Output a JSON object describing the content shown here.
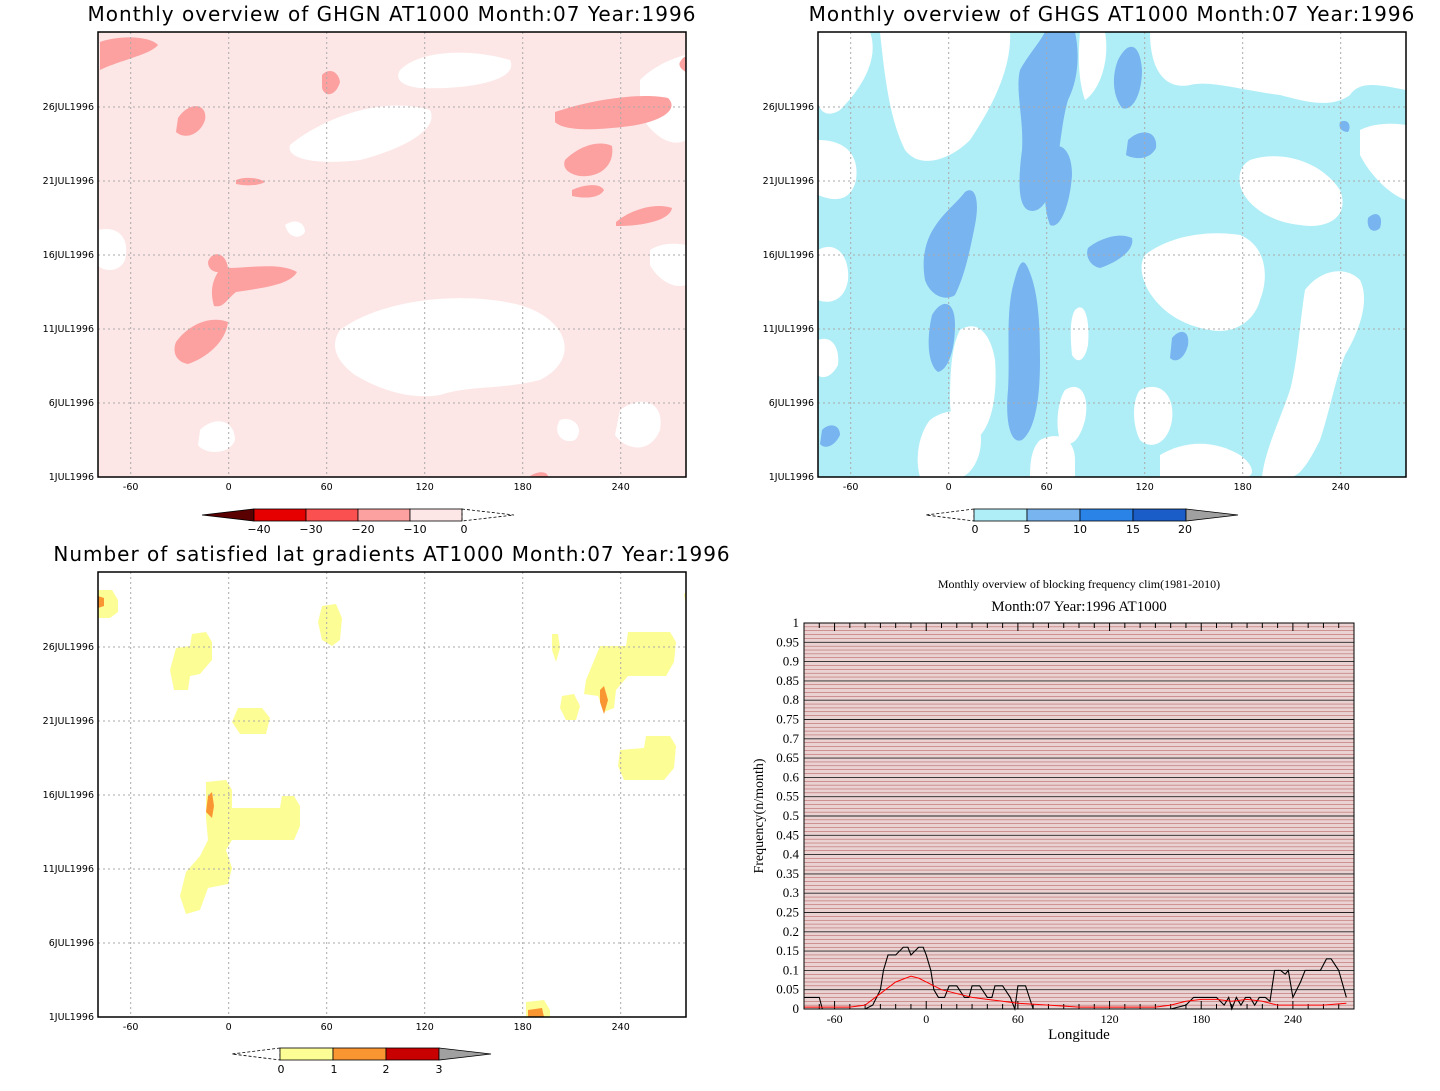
{
  "panels": {
    "ghgn": {
      "title": "Monthly overview of GHGN AT1000 Month:07 Year:1996",
      "x_ticks": [
        "-60",
        "0",
        "60",
        "120",
        "180",
        "240"
      ],
      "y_ticks": [
        "1JUL1996",
        "6JUL1996",
        "11JUL1996",
        "16JUL1996",
        "21JUL1996",
        "26JUL1996"
      ],
      "colorbar": {
        "labels": [
          "−40",
          "−30",
          "−20",
          "−10",
          "0"
        ],
        "colors": [
          "#5a0000",
          "#e60000",
          "#fa5050",
          "#fca0a0",
          "#fde6e6"
        ]
      }
    },
    "ghgs": {
      "title": "Monthly overview of GHGS AT1000 Month:07 Year:1996",
      "x_ticks": [
        "-60",
        "0",
        "60",
        "120",
        "180",
        "240"
      ],
      "y_ticks": [
        "1JUL1996",
        "6JUL1996",
        "11JUL1996",
        "16JUL1996",
        "21JUL1996",
        "26JUL1996"
      ],
      "colorbar": {
        "labels": [
          "0",
          "5",
          "10",
          "15",
          "20"
        ],
        "colors": [
          "#b0eef7",
          "#78b4f0",
          "#2a84e8",
          "#1a5cc8",
          "#a0a0a0"
        ]
      }
    },
    "gradients": {
      "title": "Number of satisfied lat gradients AT1000 Month:07 Year:1996",
      "x_ticks": [
        "-60",
        "0",
        "60",
        "120",
        "180",
        "240"
      ],
      "y_ticks": [
        "1JUL1996",
        "6JUL1996",
        "11JUL1996",
        "16JUL1996",
        "21JUL1996",
        "26JUL1996"
      ],
      "colorbar": {
        "labels": [
          "0",
          "1",
          "2",
          "3"
        ],
        "colors": [
          "#fdfd96",
          "#fa9632",
          "#c80000",
          "#a0a0a0"
        ]
      }
    }
  },
  "frequency_chart": {
    "title_line1": "Monthly overview of blocking frequency clim(1981-2010)",
    "title_line2": "Month:07 Year:1996  AT1000",
    "xlabel": "Longitude",
    "ylabel": "Frequency(n/month)",
    "x_ticks": [
      "-60",
      "0",
      "60",
      "120",
      "180",
      "240"
    ],
    "y_ticks": [
      "0",
      "0.05",
      "0.1",
      "0.15",
      "0.2",
      "0.25",
      "0.3",
      "0.35",
      "0.4",
      "0.45",
      "0.5",
      "0.55",
      "0.6",
      "0.65",
      "0.7",
      "0.75",
      "0.8",
      "0.85",
      "0.9",
      "0.95",
      "1"
    ]
  },
  "chart_data": [
    {
      "type": "heatmap",
      "title": "Monthly overview of GHGN AT1000 Month:07 Year:1996",
      "xlim": [
        -90,
        270
      ],
      "ylim": [
        "1JUL1996",
        "31JUL1996"
      ],
      "color_levels": [
        -40,
        -30,
        -20,
        -10,
        0
      ]
    },
    {
      "type": "heatmap",
      "title": "Monthly overview of GHGS AT1000 Month:07 Year:1996",
      "xlim": [
        -90,
        270
      ],
      "ylim": [
        "1JUL1996",
        "31JUL1996"
      ],
      "color_levels": [
        0,
        5,
        10,
        15,
        20
      ]
    },
    {
      "type": "heatmap",
      "title": "Number of satisfied lat gradients AT1000 Month:07 Year:1996",
      "xlim": [
        -90,
        270
      ],
      "ylim": [
        "1JUL1996",
        "31JUL1996"
      ],
      "color_levels": [
        0,
        1,
        2,
        3
      ]
    },
    {
      "type": "line",
      "title": "Monthly overview of blocking frequency clim(1981-2010)",
      "subtitle": "Month:07 Year:1996  AT1000",
      "xlabel": "Longitude",
      "ylabel": "Frequency(n/month)",
      "xlim": [
        -80,
        280
      ],
      "ylim": [
        0,
        1
      ],
      "grid": true,
      "series": [
        {
          "color": "#000000",
          "x": [
            -80,
            -70,
            -68,
            -60,
            -50,
            -40,
            -35,
            -30,
            -28,
            -25,
            -20,
            -15,
            -12,
            -10,
            -5,
            -2,
            0,
            3,
            5,
            8,
            12,
            15,
            20,
            25,
            28,
            30,
            35,
            40,
            43,
            45,
            50,
            55,
            58,
            60,
            65,
            70,
            75,
            80,
            90,
            100,
            110,
            120,
            130,
            140,
            150,
            160,
            170,
            175,
            180,
            185,
            190,
            195,
            198,
            200,
            203,
            206,
            209,
            212,
            215,
            218,
            222,
            225,
            228,
            230,
            232,
            235,
            237,
            240,
            245,
            248,
            250,
            255,
            258,
            262,
            265,
            270,
            275
          ],
          "y": [
            0.03,
            0.03,
            0,
            0,
            0,
            0,
            0.01,
            0.05,
            0.1,
            0.14,
            0.14,
            0.16,
            0.16,
            0.14,
            0.16,
            0.16,
            0.14,
            0.1,
            0.05,
            0.03,
            0.03,
            0.06,
            0.06,
            0.03,
            0.03,
            0.06,
            0.06,
            0.03,
            0.03,
            0.06,
            0.06,
            0.03,
            0,
            0.06,
            0.06,
            0,
            0,
            0,
            0,
            0,
            0,
            0,
            0,
            0,
            0,
            0,
            0.01,
            0.03,
            0.03,
            0.03,
            0.03,
            0.01,
            0.03,
            0,
            0.03,
            0.01,
            0.03,
            0.03,
            0.01,
            0.03,
            0.03,
            0.02,
            0.1,
            0.1,
            0.1,
            0.09,
            0.1,
            0.03,
            0.07,
            0.1,
            0.1,
            0.1,
            0.1,
            0.13,
            0.13,
            0.1,
            0.03
          ]
        },
        {
          "color": "#ff0000",
          "x": [
            -80,
            -60,
            -50,
            -40,
            -30,
            -20,
            -10,
            -5,
            0,
            10,
            20,
            30,
            40,
            50,
            60,
            80,
            100,
            120,
            150,
            160,
            170,
            180,
            190,
            200,
            210,
            220,
            230,
            240,
            260,
            275
          ],
          "y": [
            0.005,
            0.005,
            0.005,
            0.01,
            0.04,
            0.07,
            0.085,
            0.08,
            0.07,
            0.05,
            0.04,
            0.03,
            0.025,
            0.02,
            0.015,
            0.01,
            0.005,
            0.005,
            0.005,
            0.01,
            0.02,
            0.025,
            0.025,
            0.02,
            0.025,
            0.02,
            0.01,
            0.01,
            0.01,
            0.015
          ]
        }
      ]
    }
  ]
}
